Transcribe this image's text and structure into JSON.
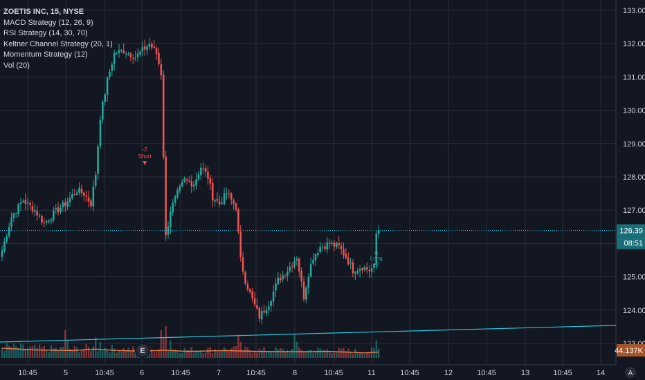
{
  "header": {
    "title": "ZOETIS INC, 15, NYSE",
    "indicators": [
      "MACD Strategy (12, 26, 9)",
      "RSI Strategy (14, 30, 70)",
      "Keltner Channel Strategy (20, 1)",
      "Momentum Strategy (12)",
      "Vol (20)"
    ]
  },
  "colors": {
    "background": "#131722",
    "grid": "#2a2e39",
    "up": "#26a69a",
    "down": "#ef5350",
    "price_line": "#26c6da",
    "trend_line": "#26c6da",
    "volume_ma": "#f57c42",
    "text": "#d1d4dc"
  },
  "price_badge": {
    "price": "126.39",
    "countdown": "08:51"
  },
  "volume_badge": "44.137K",
  "signals": {
    "short": {
      "qty": "-2",
      "label": "Short"
    },
    "long": {
      "qty": "+2",
      "label": "Long"
    }
  },
  "event_marker": "E",
  "time_axis_button": "A",
  "chart_data": {
    "type": "candlestick",
    "symbol": "ZOETIS INC",
    "interval": "15",
    "exchange": "NYSE",
    "grid": true,
    "y_axis": {
      "position": "right",
      "ticks": [
        "133.00",
        "132.00",
        "131.00",
        "130.00",
        "129.00",
        "128.00",
        "127.00",
        "126.00",
        "125.00",
        "124.00",
        "123.00"
      ],
      "ylim": [
        122.7,
        133.2
      ]
    },
    "x_axis": {
      "ticks": [
        "10:45",
        "5",
        "10:45",
        "6",
        "10:45",
        "7",
        "10:45",
        "8",
        "10:45",
        "11",
        "10:45",
        "12",
        "10:45",
        "13",
        "10:45",
        "14"
      ]
    },
    "last_price": 126.39,
    "anchors": [
      [
        0,
        125.8
      ],
      [
        4,
        126.8
      ],
      [
        9,
        127.3
      ],
      [
        14,
        127.0
      ],
      [
        18,
        126.6
      ],
      [
        22,
        126.9
      ],
      [
        27,
        127.2
      ],
      [
        32,
        127.6
      ],
      [
        35,
        127.5
      ],
      [
        38,
        127.2
      ],
      [
        40,
        128.1
      ],
      [
        42,
        129.8
      ],
      [
        45,
        130.9
      ],
      [
        48,
        131.7
      ],
      [
        52,
        131.8
      ],
      [
        57,
        131.6
      ],
      [
        60,
        131.8
      ],
      [
        63,
        132.0
      ],
      [
        66,
        131.7
      ],
      [
        68,
        131.1
      ],
      [
        70,
        126.2
      ],
      [
        72,
        127.0
      ],
      [
        75,
        127.5
      ],
      [
        78,
        127.9
      ],
      [
        82,
        127.8
      ],
      [
        85,
        128.3
      ],
      [
        88,
        128.0
      ],
      [
        90,
        127.4
      ],
      [
        93,
        127.2
      ],
      [
        96,
        127.5
      ],
      [
        100,
        127.1
      ],
      [
        102,
        125.5
      ],
      [
        104,
        124.9
      ],
      [
        107,
        124.3
      ],
      [
        110,
        123.8
      ],
      [
        114,
        124.2
      ],
      [
        118,
        124.9
      ],
      [
        122,
        125.2
      ],
      [
        126,
        125.6
      ],
      [
        129,
        124.4
      ],
      [
        131,
        125.1
      ],
      [
        133,
        125.6
      ],
      [
        136,
        125.9
      ],
      [
        140,
        126.0
      ],
      [
        144,
        125.9
      ],
      [
        147,
        125.6
      ],
      [
        150,
        125.2
      ],
      [
        154,
        125.3
      ],
      [
        157,
        125.2
      ],
      [
        159,
        125.3
      ],
      [
        160,
        126.3
      ],
      [
        161,
        126.39
      ]
    ],
    "volume_ylim": [
      0,
      130
    ],
    "volume_anchors": [
      [
        0,
        38
      ],
      [
        15,
        32
      ],
      [
        30,
        30
      ],
      [
        40,
        35
      ],
      [
        50,
        30
      ],
      [
        60,
        28
      ],
      [
        70,
        31
      ],
      [
        80,
        27
      ],
      [
        95,
        30
      ],
      [
        110,
        27
      ],
      [
        125,
        26
      ],
      [
        140,
        27
      ],
      [
        155,
        22
      ],
      [
        161,
        25
      ]
    ],
    "volume_spikes": [
      [
        27,
        95
      ],
      [
        28,
        60
      ],
      [
        40,
        70
      ],
      [
        42,
        55
      ],
      [
        68,
        95
      ],
      [
        69,
        70
      ],
      [
        70,
        110
      ],
      [
        72,
        60
      ],
      [
        101,
        80
      ],
      [
        102,
        55
      ],
      [
        125,
        80
      ],
      [
        126,
        55
      ],
      [
        158,
        38
      ],
      [
        160,
        60
      ]
    ]
  }
}
